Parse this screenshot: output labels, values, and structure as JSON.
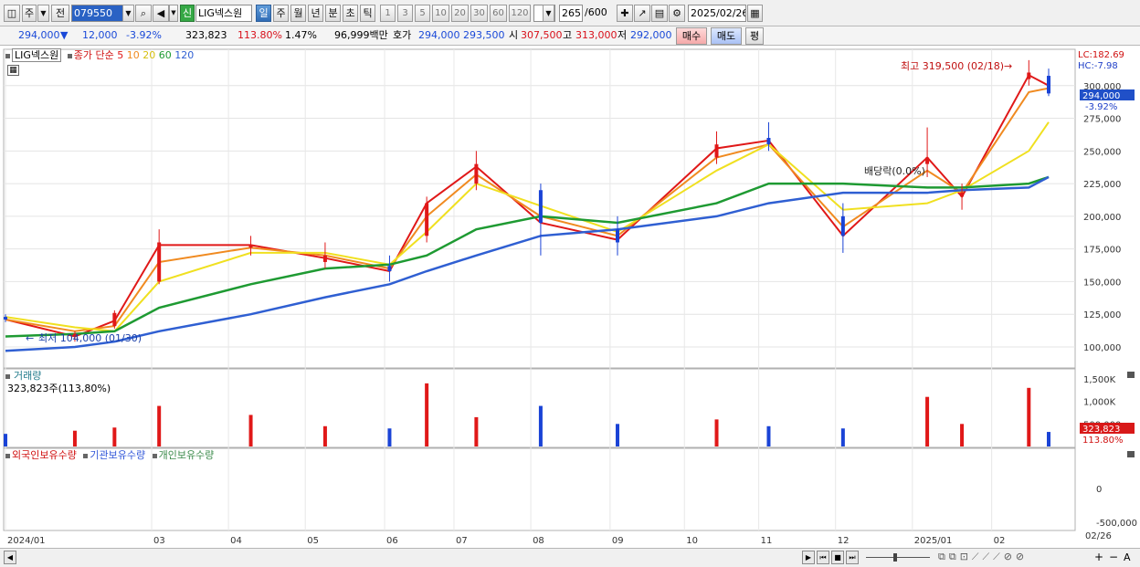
{
  "toolbar": {
    "period_unit": "주",
    "prev_label": "전",
    "stock_code": "079550",
    "credit_badge": "신",
    "stock_name": "LIG넥스원",
    "period_buttons": [
      "일",
      "주",
      "월",
      "년",
      "분",
      "초",
      "틱"
    ],
    "interval_buttons": [
      "1",
      "3",
      "5",
      "10",
      "20",
      "30",
      "60",
      "120"
    ],
    "count_display": "265",
    "count_max": "/600",
    "date": "2025/02/26"
  },
  "info": {
    "price": "294,000",
    "change": "12,000",
    "change_pct": "-3.92%",
    "volume": "323,823",
    "volume_ratio": "113.80%",
    "turnover": "1.47%",
    "amount": "96,999백만",
    "bid_label": "호가",
    "bid1": "294,000",
    "bid2": "293,500",
    "open_label": "시",
    "open": "307,500",
    "high_label": "고",
    "high": "313,000",
    "low_label": "저",
    "low": "292,000",
    "buy": "매수",
    "sell": "매도",
    "eval": "평"
  },
  "colors": {
    "up": "#e01818",
    "down": "#1a43d6",
    "ma5": "#e01818",
    "ma10": "#f08a20",
    "ma20": "#f0e020",
    "ma60": "#1e9a32",
    "ma120": "#2f5fd2",
    "foreign": "#e01818",
    "institution": "#2f55d8",
    "individual": "#3a8a4a"
  },
  "legend": {
    "stock_name": "LIG넥스원",
    "ma_label": "종가 단순",
    "ma_periods": [
      "5",
      "10",
      "20",
      "60",
      "120"
    ],
    "volume_label": "거래량",
    "volume_value": "323,823주(113,80%)",
    "holdings": [
      "외국인보유수량",
      "기관보유수량",
      "개인보유수량"
    ]
  },
  "chart_data": {
    "type": "candlestick",
    "price_axis": [
      "300,000",
      "275,000",
      "250,000",
      "225,000",
      "200,000",
      "175,000",
      "150,000",
      "125,000",
      "100,000"
    ],
    "price_range": [
      86000,
      325000
    ],
    "current_price_tag": "294,000",
    "current_change_tag": "-3.92%",
    "lc_label": "LC:182.69",
    "hc_label": "HC:-7.98",
    "high_annotation": "최고 319,500 (02/18)",
    "low_annotation": "최저 104,000 (01/30)",
    "dividend_annotation": "배당락(0.0%)",
    "volume_axis": [
      "1,500K",
      "1,000K",
      "500,000"
    ],
    "volume_tag": "323,823",
    "volume_tag_pct": "113.80%",
    "holdings_axis": [
      "0",
      "-500,000"
    ],
    "x_labels": [
      "2024/01",
      "03",
      "04",
      "05",
      "06",
      "07",
      "08",
      "09",
      "10",
      "11",
      "12",
      "2025/01",
      "02"
    ],
    "x_end_label": "02/26",
    "candles": [
      {
        "d": "2024/01/02",
        "o": 123000,
        "h": 125000,
        "l": 119000,
        "c": 121000
      },
      {
        "d": "2024/01/30",
        "o": 108000,
        "h": 112000,
        "l": 104000,
        "c": 110000
      },
      {
        "d": "2024/02/15",
        "o": 116000,
        "h": 128000,
        "l": 114000,
        "c": 126000
      },
      {
        "d": "2024/03/04",
        "o": 150000,
        "h": 190000,
        "l": 148000,
        "c": 180000
      },
      {
        "d": "2024/04/10",
        "o": 176000,
        "h": 185000,
        "l": 170000,
        "c": 178000
      },
      {
        "d": "2024/05/10",
        "o": 165000,
        "h": 180000,
        "l": 160000,
        "c": 170000
      },
      {
        "d": "2024/06/05",
        "o": 162000,
        "h": 170000,
        "l": 150000,
        "c": 158000
      },
      {
        "d": "2024/06/20",
        "o": 185000,
        "h": 215000,
        "l": 180000,
        "c": 210000
      },
      {
        "d": "2024/07/10",
        "o": 225000,
        "h": 250000,
        "l": 220000,
        "c": 240000
      },
      {
        "d": "2024/08/05",
        "o": 220000,
        "h": 225000,
        "l": 170000,
        "c": 195000
      },
      {
        "d": "2024/09/05",
        "o": 190000,
        "h": 200000,
        "l": 170000,
        "c": 180000
      },
      {
        "d": "2024/10/15",
        "o": 245000,
        "h": 265000,
        "l": 240000,
        "c": 255000
      },
      {
        "d": "2024/11/05",
        "o": 260000,
        "h": 272000,
        "l": 250000,
        "c": 255000
      },
      {
        "d": "2024/12/05",
        "o": 200000,
        "h": 210000,
        "l": 172000,
        "c": 185000
      },
      {
        "d": "2025/01/08",
        "o": 240000,
        "h": 268000,
        "l": 230000,
        "c": 245000
      },
      {
        "d": "2025/01/22",
        "o": 215000,
        "h": 225000,
        "l": 205000,
        "c": 218000
      },
      {
        "d": "2025/02/18",
        "o": 305000,
        "h": 319500,
        "l": 300000,
        "c": 310000
      },
      {
        "d": "2025/02/26",
        "o": 307500,
        "h": 313000,
        "l": 292000,
        "c": 294000
      }
    ],
    "ma": [
      {
        "name": "5",
        "values": [
          121000,
          108000,
          120000,
          178000,
          178000,
          168000,
          158000,
          210000,
          238000,
          195000,
          182000,
          252000,
          258000,
          185000,
          245000,
          215000,
          308000,
          300000
        ]
      },
      {
        "name": "10",
        "values": [
          121000,
          112000,
          116000,
          165000,
          176000,
          170000,
          160000,
          200000,
          232000,
          200000,
          185000,
          245000,
          255000,
          192000,
          235000,
          218000,
          295000,
          298000
        ]
      },
      {
        "name": "20",
        "values": [
          123000,
          115000,
          112000,
          150000,
          172000,
          172000,
          163000,
          188000,
          225000,
          208000,
          188000,
          235000,
          255000,
          205000,
          210000,
          220000,
          250000,
          272000
        ]
      },
      {
        "name": "60",
        "values": [
          108000,
          110000,
          112000,
          130000,
          148000,
          160000,
          163000,
          170000,
          190000,
          200000,
          195000,
          210000,
          225000,
          225000,
          222000,
          222000,
          225000,
          230000
        ]
      },
      {
        "name": "120",
        "values": [
          97000,
          100000,
          104000,
          112000,
          125000,
          138000,
          148000,
          158000,
          170000,
          185000,
          190000,
          200000,
          210000,
          218000,
          218000,
          220000,
          222000,
          230000
        ]
      }
    ],
    "volume_bars": [
      280,
      350,
      420,
      900,
      700,
      450,
      400,
      1400,
      650,
      900,
      500,
      600,
      450,
      400,
      1100,
      500,
      1300,
      323
    ]
  },
  "scrollbar": {
    "plus": "+",
    "minus": "−",
    "a": "A"
  }
}
